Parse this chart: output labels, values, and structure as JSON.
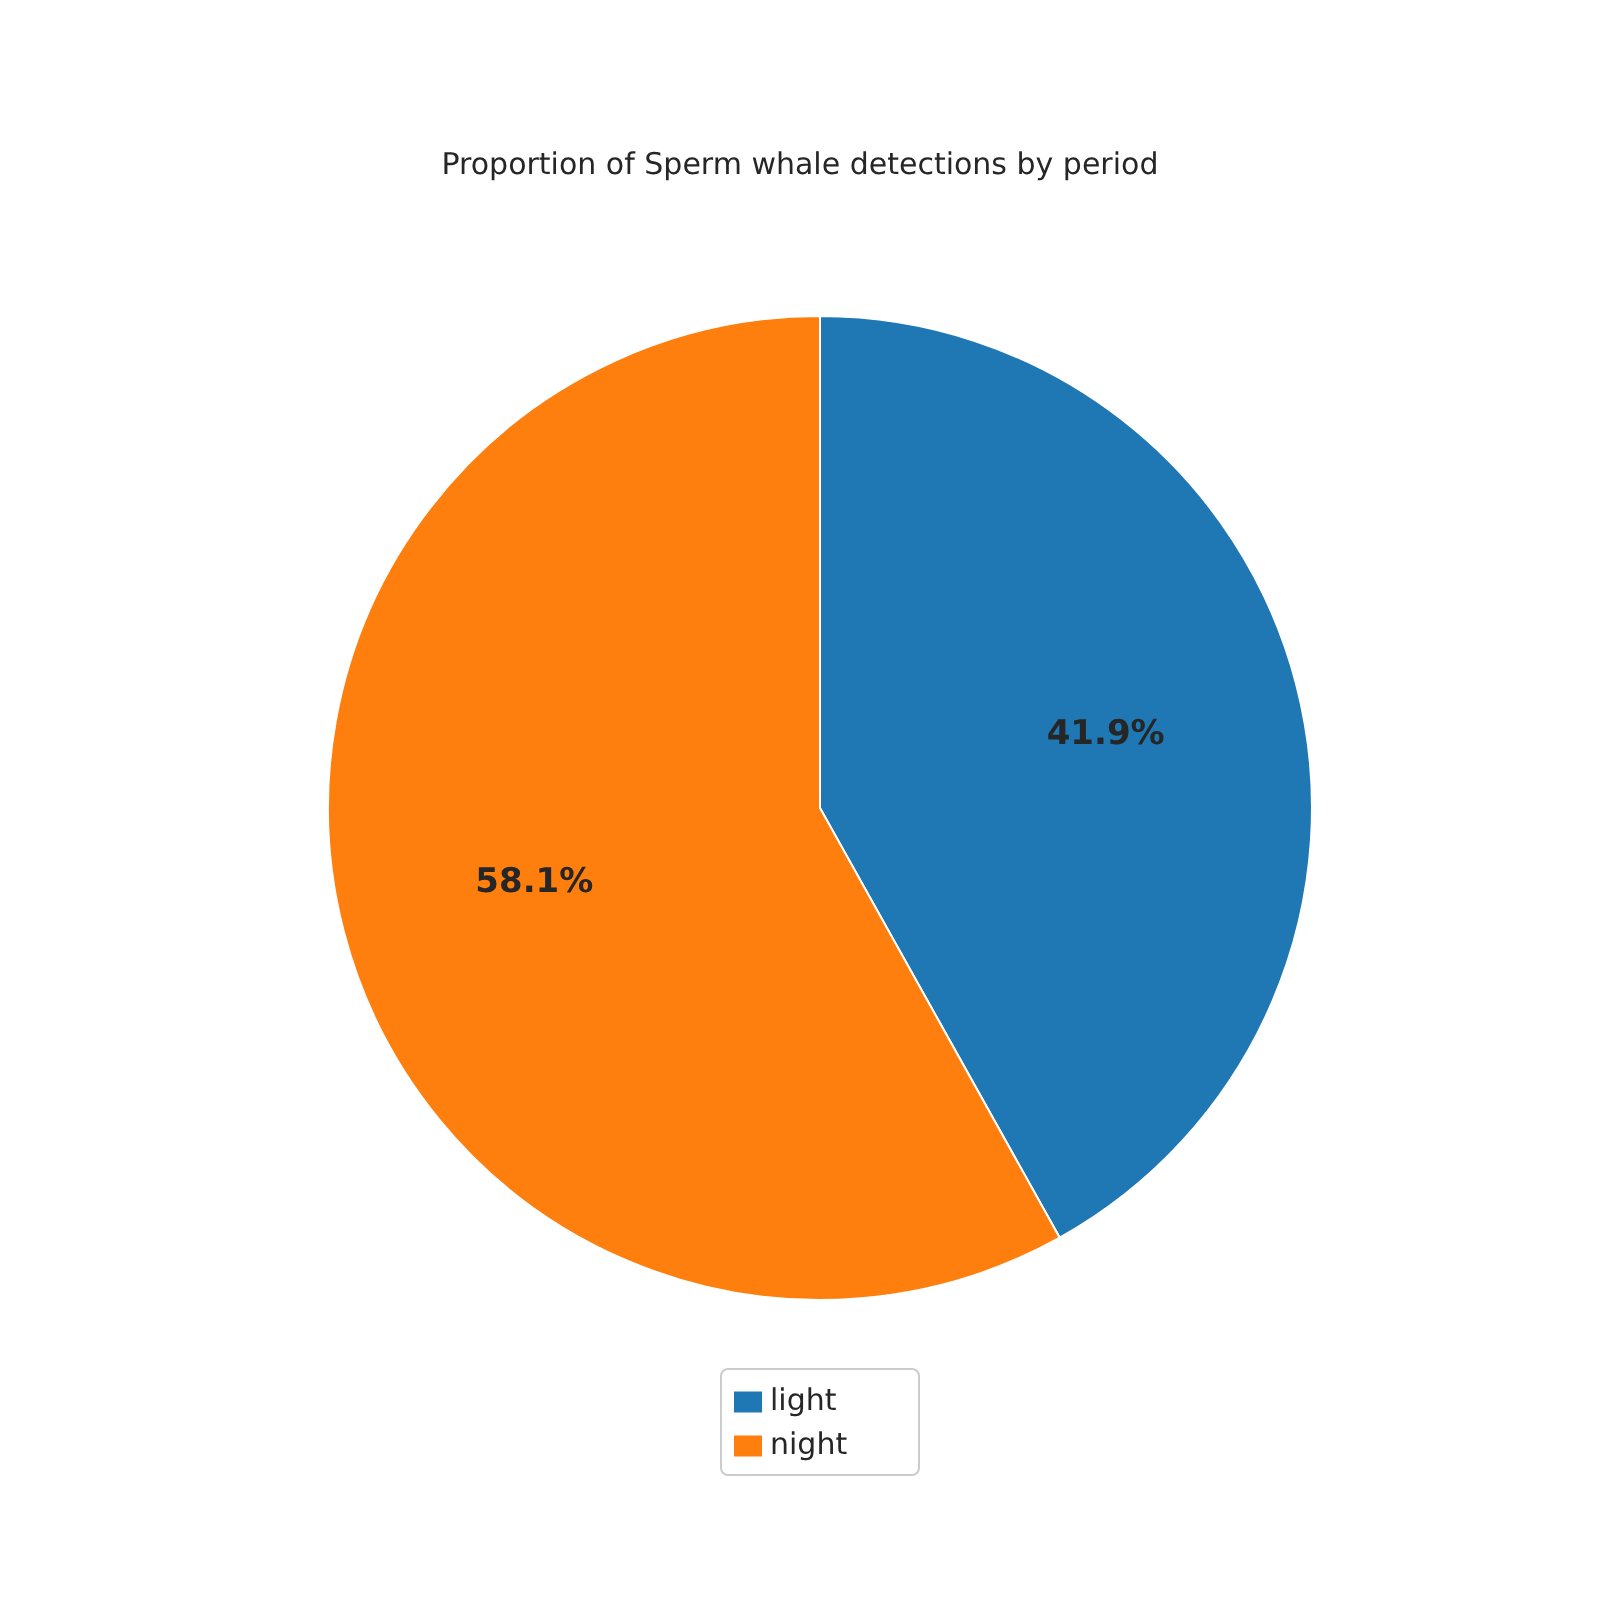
{
  "chart_data": {
    "type": "pie",
    "title": "Proportion of Sperm whale detections by period",
    "categories": [
      "light",
      "night"
    ],
    "values": [
      41.9,
      58.1
    ],
    "colors": [
      "#1f77b4",
      "#ff7f0e"
    ],
    "value_labels": [
      "41.9%",
      "58.1%"
    ],
    "legend": "bottom"
  }
}
